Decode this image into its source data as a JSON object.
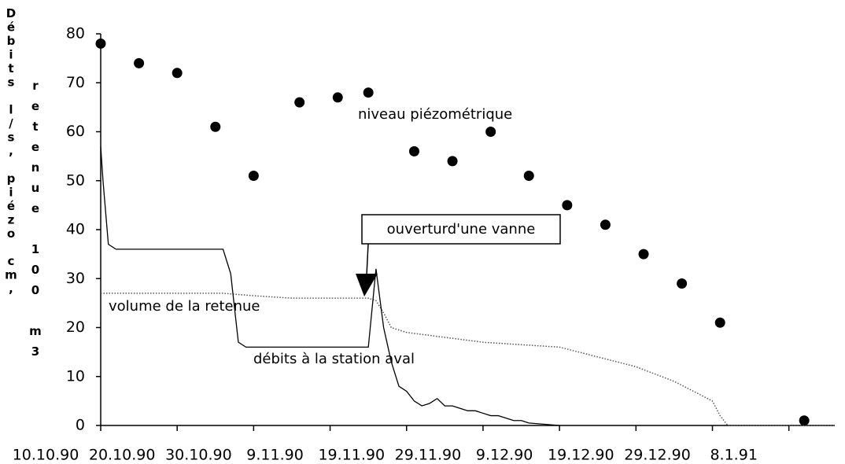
{
  "chart_data": {
    "type": "line",
    "y_label": "Débits l/s, piézo cm,",
    "y_label2": "retenue 100 m3",
    "xlim": [
      0,
      96
    ],
    "xticks": [
      {
        "value": 0,
        "label": "10.10.90"
      },
      {
        "value": 10,
        "label": "20.10.90"
      },
      {
        "value": 20,
        "label": "30.10.90"
      },
      {
        "value": 30,
        "label": "9.11.90"
      },
      {
        "value": 40,
        "label": "19.11.90"
      },
      {
        "value": 50,
        "label": "29.11.90"
      },
      {
        "value": 60,
        "label": "9.12.90"
      },
      {
        "value": 70,
        "label": "19.12.90"
      },
      {
        "value": 80,
        "label": "29.12.90"
      },
      {
        "value": 90,
        "label": "8.1.91"
      }
    ],
    "ylim": [
      0,
      80
    ],
    "yticks": [
      0,
      10,
      20,
      30,
      40,
      50,
      60,
      70,
      80
    ],
    "series": [
      {
        "name": "niveau piézométrique",
        "type": "scatter",
        "color": "#000000",
        "x": [
          0,
          5,
          10,
          15,
          20,
          26,
          31,
          35,
          41,
          46,
          51,
          56,
          61,
          66,
          71,
          76,
          81,
          92
        ],
        "values": [
          78,
          74,
          72,
          61,
          51,
          66,
          67,
          68,
          56,
          54,
          60,
          51,
          45,
          41,
          35,
          29,
          21,
          1
        ]
      },
      {
        "name": "volume de la retenue",
        "type": "line",
        "style": "dotted",
        "color": "#555555",
        "x": [
          0,
          10,
          16,
          20,
          25,
          35,
          36,
          37,
          38,
          40,
          45,
          50,
          55,
          60,
          65,
          70,
          75,
          80,
          81,
          82,
          96
        ],
        "values": [
          27,
          27,
          27,
          26.5,
          26,
          26,
          25.5,
          23,
          20,
          19,
          18,
          17,
          16.5,
          16,
          14,
          12,
          9,
          5,
          2,
          0,
          0
        ]
      },
      {
        "name": "débits à la station aval",
        "type": "line",
        "style": "solid",
        "color": "#000000",
        "x": [
          0,
          0.3,
          1,
          2,
          16,
          17,
          18,
          19,
          35,
          36,
          37,
          38,
          39,
          40,
          41,
          42,
          43,
          44,
          45,
          46,
          47,
          48,
          49,
          50,
          51,
          52,
          53,
          54,
          55,
          56,
          60
        ],
        "values": [
          57,
          50,
          37,
          36,
          36,
          31,
          17,
          16,
          16,
          32,
          20,
          13,
          8,
          7,
          5,
          4,
          4.5,
          5.5,
          4,
          4,
          3.5,
          3,
          3,
          2.5,
          2,
          2,
          1.5,
          1,
          1,
          0.5,
          0
        ]
      }
    ],
    "annotations": [
      {
        "text": "ouverturd'une vanne"
      }
    ]
  }
}
